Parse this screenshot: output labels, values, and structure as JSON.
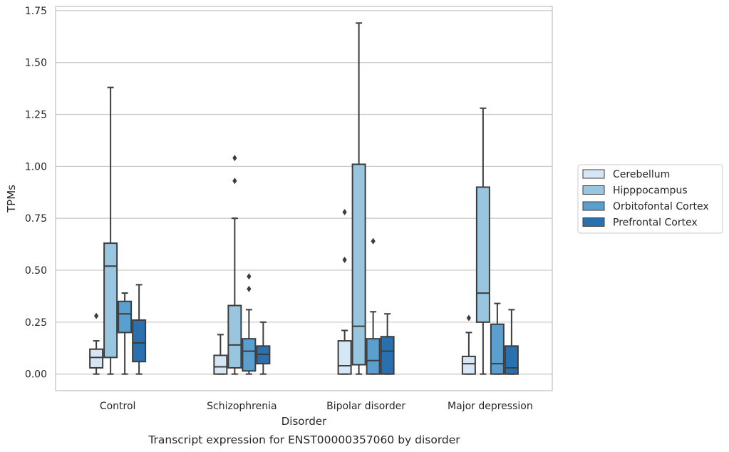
{
  "chart_data": {
    "type": "boxplot",
    "xlabel": "Disorder",
    "ylabel": "TPMs",
    "caption": "Transcript expression for ENST00000357060 by disorder",
    "ylim": [
      -0.08,
      1.77
    ],
    "yticks": [
      "0.00",
      "0.25",
      "0.50",
      "0.75",
      "1.00",
      "1.25",
      "1.50",
      "1.75"
    ],
    "ytick_values": [
      0,
      0.25,
      0.5,
      0.75,
      1.0,
      1.25,
      1.5,
      1.75
    ],
    "grid": "horizontal",
    "legend_position": "right",
    "categories": [
      "Control",
      "Schizophrenia",
      "Bipolar disorder",
      "Major depression"
    ],
    "series": [
      {
        "name": "Cerebellum",
        "color": "#d6e6f4",
        "boxes": [
          {
            "whislo": 0.0,
            "q1": 0.03,
            "med": 0.08,
            "q3": 0.12,
            "whishi": 0.16,
            "fliers": [
              0.28
            ]
          },
          {
            "whislo": 0.0,
            "q1": 0.0,
            "med": 0.035,
            "q3": 0.09,
            "whishi": 0.19,
            "fliers": []
          },
          {
            "whislo": 0.0,
            "q1": 0.0,
            "med": 0.04,
            "q3": 0.16,
            "whishi": 0.21,
            "fliers": [
              0.55,
              0.78
            ]
          },
          {
            "whislo": 0.0,
            "q1": 0.0,
            "med": 0.05,
            "q3": 0.085,
            "whishi": 0.2,
            "fliers": [
              0.27
            ]
          }
        ]
      },
      {
        "name": "Hipppocampus",
        "color": "#9ac5de",
        "boxes": [
          {
            "whislo": 0.0,
            "q1": 0.08,
            "med": 0.52,
            "q3": 0.63,
            "whishi": 1.38,
            "fliers": []
          },
          {
            "whislo": 0.0,
            "q1": 0.03,
            "med": 0.14,
            "q3": 0.33,
            "whishi": 0.75,
            "fliers": [
              0.93,
              1.04
            ]
          },
          {
            "whislo": 0.0,
            "q1": 0.045,
            "med": 0.23,
            "q3": 1.01,
            "whishi": 1.69,
            "fliers": []
          },
          {
            "whislo": 0.0,
            "q1": 0.25,
            "med": 0.39,
            "q3": 0.9,
            "whishi": 1.28,
            "fliers": []
          }
        ]
      },
      {
        "name": "Orbitofontal Cortex",
        "color": "#5a9fcd",
        "boxes": [
          {
            "whislo": 0.0,
            "q1": 0.2,
            "med": 0.29,
            "q3": 0.35,
            "whishi": 0.39,
            "fliers": []
          },
          {
            "whislo": 0.0,
            "q1": 0.015,
            "med": 0.11,
            "q3": 0.17,
            "whishi": 0.31,
            "fliers": [
              0.41,
              0.47
            ]
          },
          {
            "whislo": 0.0,
            "q1": 0.0,
            "med": 0.065,
            "q3": 0.17,
            "whishi": 0.3,
            "fliers": [
              0.64
            ]
          },
          {
            "whislo": 0.0,
            "q1": 0.0,
            "med": 0.05,
            "q3": 0.24,
            "whishi": 0.34,
            "fliers": []
          }
        ]
      },
      {
        "name": "Prefrontal Cortex",
        "color": "#2a6fae",
        "boxes": [
          {
            "whislo": 0.0,
            "q1": 0.06,
            "med": 0.15,
            "q3": 0.26,
            "whishi": 0.43,
            "fliers": []
          },
          {
            "whislo": 0.0,
            "q1": 0.05,
            "med": 0.095,
            "q3": 0.135,
            "whishi": 0.25,
            "fliers": []
          },
          {
            "whislo": 0.0,
            "q1": 0.0,
            "med": 0.11,
            "q3": 0.18,
            "whishi": 0.29,
            "fliers": []
          },
          {
            "whislo": 0.0,
            "q1": 0.0,
            "med": 0.03,
            "q3": 0.135,
            "whishi": 0.31,
            "fliers": []
          }
        ]
      }
    ]
  }
}
